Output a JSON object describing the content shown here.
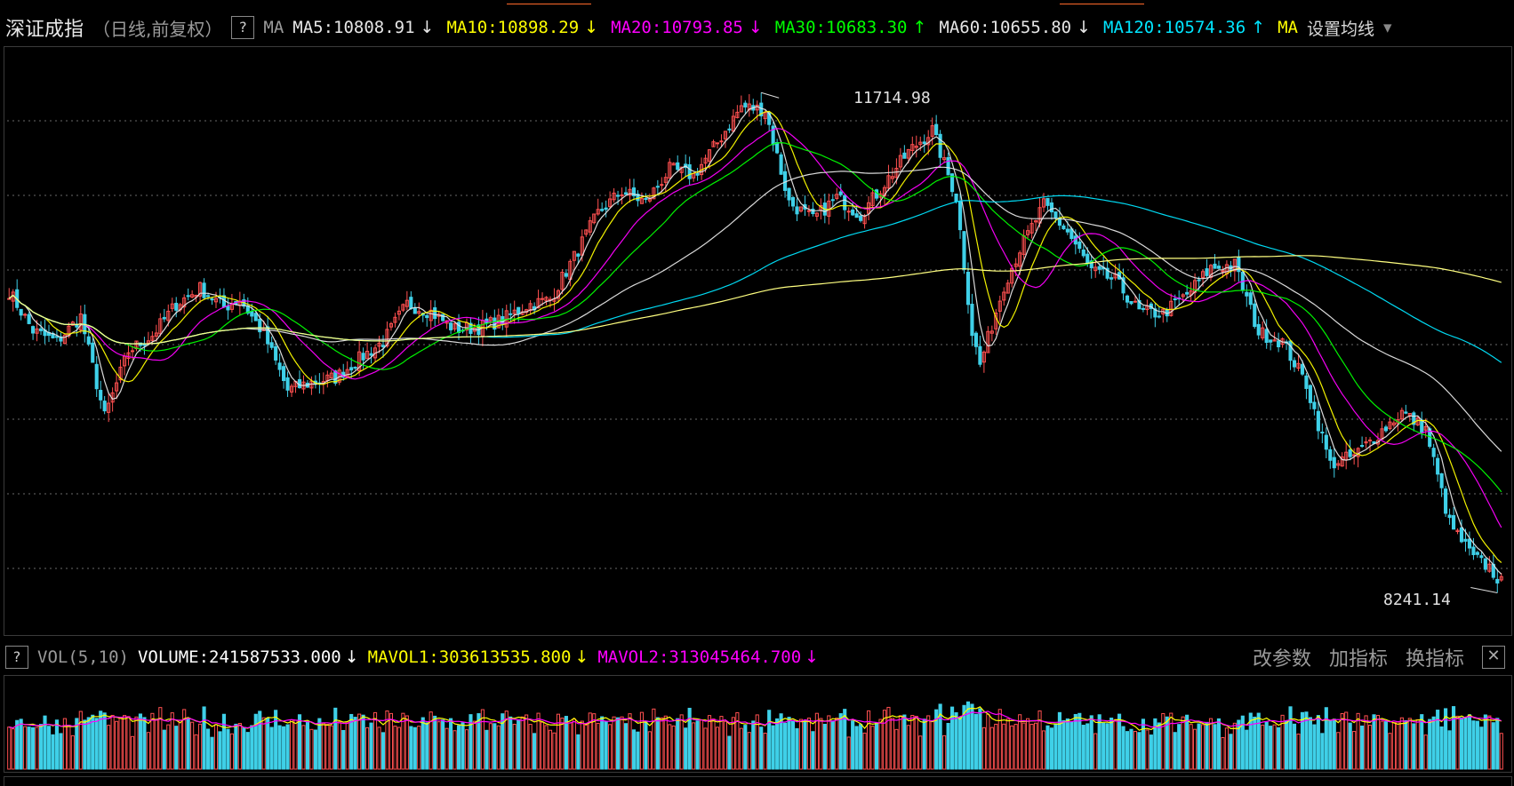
{
  "header": {
    "title": "深证成指",
    "subtitle": "（日线,前复权）",
    "help": "?",
    "ma_label": "MA",
    "indicators": [
      {
        "text": "MA5:10808.91",
        "arrow": "↓",
        "color": "#e6e6e6"
      },
      {
        "text": "MA10:10898.29",
        "arrow": "↓",
        "color": "#ffff00"
      },
      {
        "text": "MA20:10793.85",
        "arrow": "↓",
        "color": "#ff00ff"
      },
      {
        "text": "MA30:10683.30",
        "arrow": "↑",
        "color": "#00ff00"
      },
      {
        "text": "MA60:10655.80",
        "arrow": "↓",
        "color": "#e6e6e6"
      },
      {
        "text": "MA120:10574.36",
        "arrow": "↑",
        "color": "#00e5ff"
      },
      {
        "text": "MA",
        "arrow": "",
        "color": "#ffff00"
      }
    ],
    "set_ma": "设置均线",
    "set_ma_arrow": "▾"
  },
  "vol_header": {
    "help": "?",
    "label": "VOL(5,10)",
    "volume": {
      "text": "VOLUME:241587533.000",
      "arrow": "↓",
      "color": "#ffffff"
    },
    "mavol1": {
      "text": "MAVOL1:303613535.800",
      "arrow": "↓",
      "color": "#ffff00"
    },
    "mavol2": {
      "text": "MAVOL2:313045464.700",
      "arrow": "↓",
      "color": "#ff00ff"
    },
    "buttons": [
      "改参数",
      "加指标",
      "换指标"
    ],
    "close": "✕"
  },
  "chart_data": {
    "type": "candlestick",
    "symbol": "深证成指",
    "period": "日线,前复权",
    "high_label": "11714.98",
    "low_label": "8241.14",
    "y_range": [
      8150,
      11800
    ],
    "anchors": [
      [
        0,
        10280
      ],
      [
        6,
        10030
      ],
      [
        12,
        9960
      ],
      [
        18,
        10120
      ],
      [
        24,
        9480
      ],
      [
        30,
        9900
      ],
      [
        36,
        10000
      ],
      [
        42,
        10200
      ],
      [
        48,
        10300
      ],
      [
        54,
        10180
      ],
      [
        58,
        10230
      ],
      [
        64,
        10010
      ],
      [
        70,
        9650
      ],
      [
        76,
        9700
      ],
      [
        82,
        9730
      ],
      [
        88,
        9850
      ],
      [
        94,
        9960
      ],
      [
        100,
        10200
      ],
      [
        106,
        10150
      ],
      [
        112,
        10040
      ],
      [
        118,
        10050
      ],
      [
        124,
        10100
      ],
      [
        130,
        10190
      ],
      [
        136,
        10230
      ],
      [
        142,
        10500
      ],
      [
        148,
        10780
      ],
      [
        154,
        10920
      ],
      [
        160,
        10850
      ],
      [
        166,
        11060
      ],
      [
        172,
        11020
      ],
      [
        178,
        11230
      ],
      [
        184,
        11460
      ],
      [
        190,
        11440
      ],
      [
        196,
        10850
      ],
      [
        202,
        10740
      ],
      [
        208,
        10880
      ],
      [
        214,
        10770
      ],
      [
        220,
        10970
      ],
      [
        226,
        11170
      ],
      [
        232,
        11310
      ],
      [
        238,
        10880
      ],
      [
        242,
        10020
      ],
      [
        244,
        9810
      ],
      [
        250,
        10320
      ],
      [
        254,
        10550
      ],
      [
        260,
        10830
      ],
      [
        266,
        10660
      ],
      [
        272,
        10410
      ],
      [
        278,
        10350
      ],
      [
        284,
        10150
      ],
      [
        290,
        10140
      ],
      [
        296,
        10260
      ],
      [
        302,
        10430
      ],
      [
        308,
        10450
      ],
      [
        314,
        10020
      ],
      [
        320,
        9960
      ],
      [
        326,
        9690
      ],
      [
        332,
        9180
      ],
      [
        338,
        9230
      ],
      [
        344,
        9370
      ],
      [
        350,
        9510
      ],
      [
        356,
        9400
      ],
      [
        362,
        8800
      ],
      [
        368,
        8580
      ],
      [
        372,
        8520
      ],
      [
        375,
        8420
      ]
    ],
    "ma_lines": [
      {
        "name": "MA5",
        "period": 5,
        "color": "#e6e6e6",
        "value": 10808.91
      },
      {
        "name": "MA10",
        "period": 10,
        "color": "#ffff00",
        "value": 10898.29
      },
      {
        "name": "MA20",
        "period": 20,
        "color": "#ff00ff",
        "value": 10793.85
      },
      {
        "name": "MA30",
        "period": 30,
        "color": "#00ff00",
        "value": 10683.3
      },
      {
        "name": "MA60",
        "period": 60,
        "color": "#e6e6e6",
        "value": 10655.8
      },
      {
        "name": "MA120",
        "period": 120,
        "color": "#00e5ff",
        "value": 10574.36
      }
    ],
    "extra_line_color": "#ffff80",
    "up_color": "#ff5050",
    "down_color": "#3fd0e8",
    "volume": {
      "last": 241587533,
      "mavol1": 303613535.8,
      "mavol2": 313045464.7,
      "base": 280000000,
      "range": [
        0,
        600000000
      ]
    },
    "gridlines": true
  }
}
